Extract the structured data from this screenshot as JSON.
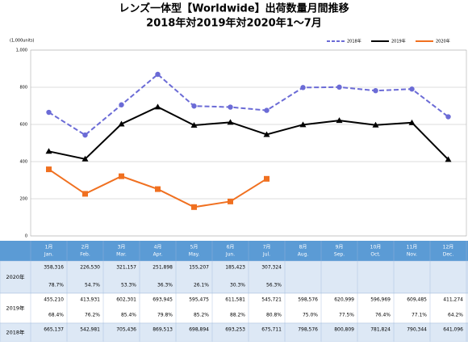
{
  "chart_data": {
    "type": "line",
    "title": "レンズ一体型【Worldwide】出荷数量月間推移",
    "subtitle": "2018年対2019年対2020年1～7月",
    "y_label": "(1,000units)",
    "categories": [
      "1月",
      "2月",
      "3月",
      "4月",
      "5月",
      "6月",
      "7月",
      "8月",
      "9月",
      "10月",
      "11月",
      "12月"
    ],
    "categories_en": [
      "Jan.",
      "Feb.",
      "Mar.",
      "Apr.",
      "May.",
      "Jun.",
      "Jul.",
      "Aug.",
      "Sep.",
      "Oct.",
      "Nov.",
      "Dec."
    ],
    "ylim": [
      0,
      1000
    ],
    "yticks": [
      0,
      200,
      400,
      600,
      800,
      {
        "value": 1000,
        "label": "1,000"
      }
    ],
    "grid": true,
    "legend": "top-right",
    "series": [
      {
        "name": "2018年",
        "color": "#6b6bd6",
        "dash": true,
        "marker": "circle",
        "values": [
          665.137,
          542.981,
          705.436,
          869.513,
          698.894,
          693.253,
          675.711,
          798.576,
          800.809,
          781.824,
          790.344,
          641.096
        ],
        "value_labels": [
          "665,137",
          "542,981",
          "705,436",
          "869,513",
          "698,894",
          "693,253",
          "675,711",
          "798,576",
          "800,809",
          "781,824",
          "790,344",
          "641,096"
        ]
      },
      {
        "name": "2019年",
        "color": "#000000",
        "dash": false,
        "marker": "triangle",
        "values": [
          455.21,
          413.931,
          602.301,
          693.945,
          595.475,
          611.581,
          545.721,
          598.576,
          620.999,
          596.969,
          609.485,
          411.274
        ],
        "value_labels": [
          "455,210",
          "413,931",
          "602,301",
          "693,945",
          "595,475",
          "611,581",
          "545,721",
          "598,576",
          "620,999",
          "596,969",
          "609,485",
          "411,274"
        ],
        "ratio_labels": [
          "68.4%",
          "76.2%",
          "85.4%",
          "79.8%",
          "85.2%",
          "88.2%",
          "80.8%",
          "75.0%",
          "77.5%",
          "76.4%",
          "77.1%",
          "64.2%"
        ]
      },
      {
        "name": "2020年",
        "color": "#f07020",
        "dash": false,
        "marker": "square",
        "values": [
          358.316,
          226.53,
          321.157,
          251.898,
          155.207,
          185.423,
          307.324,
          null,
          null,
          null,
          null,
          null
        ],
        "value_labels": [
          "358,316",
          "226,530",
          "321,157",
          "251,898",
          "155,207",
          "185,423",
          "307,324",
          null,
          null,
          null,
          null,
          null
        ],
        "ratio_labels": [
          "78.7%",
          "54.7%",
          "53.3%",
          "36.3%",
          "26.1%",
          "30.3%",
          "56.3%",
          null,
          null,
          null,
          null,
          null
        ]
      }
    ]
  }
}
